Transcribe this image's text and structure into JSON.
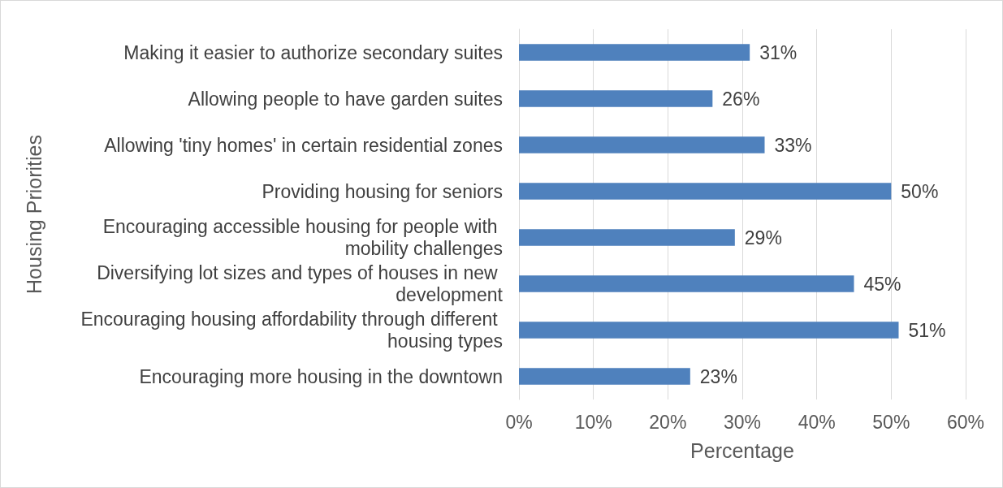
{
  "chart_data": {
    "type": "bar",
    "orientation": "horizontal",
    "xlabel": "Percentage",
    "ylabel": "Housing Priorities",
    "categories": [
      "Making it easier to authorize secondary suites",
      "Allowing people to have garden suites",
      "Allowing 'tiny homes' in certain residential zones",
      "Providing housing for seniors",
      "Encouraging accessible housing for people with mobility challenges",
      "Diversifying lot sizes and types of houses in new development",
      "Encouraging housing affordability through different housing types",
      "Encouraging more housing in the downtown"
    ],
    "values": [
      31,
      26,
      33,
      50,
      29,
      45,
      51,
      23
    ],
    "value_labels": [
      "31%",
      "26%",
      "33%",
      "50%",
      "29%",
      "45%",
      "51%",
      "23%"
    ],
    "color": "#4f81bd",
    "xlim": [
      0,
      60
    ],
    "xticks": [
      {
        "value": 0,
        "label": "0%"
      },
      {
        "value": 10,
        "label": "10%"
      },
      {
        "value": 20,
        "label": "20%"
      },
      {
        "value": 30,
        "label": "30%"
      },
      {
        "value": 40,
        "label": "40%"
      },
      {
        "value": 50,
        "label": "50%"
      },
      {
        "value": 60,
        "label": "60%"
      }
    ],
    "grid": "x"
  }
}
